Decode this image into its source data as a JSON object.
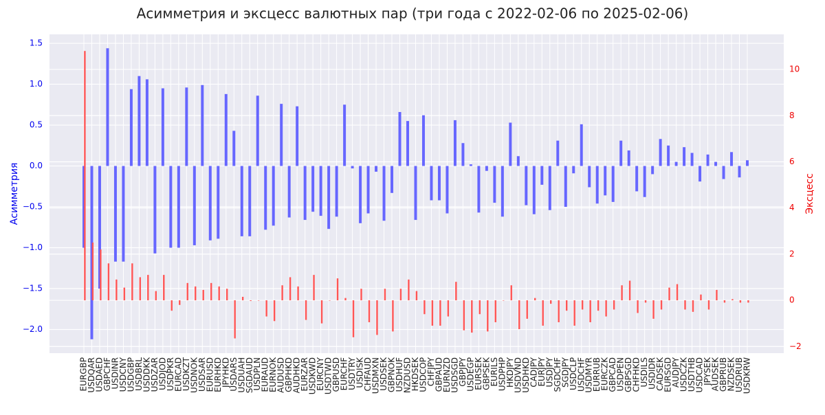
{
  "chart_data": {
    "type": "bar",
    "title": "Асимметрия и эксцесс валютных пар (три года с 2022-02-06 по 2025-02-06)",
    "ylabel": "Асимметрия",
    "y2label": "Эксцесс",
    "categories": [
      "EURGBP",
      "USDQAR",
      "USDAED",
      "GBPCHF",
      "USDINR",
      "USDCNY",
      "USDGBP",
      "USDBRL",
      "USDDKK",
      "USDZAR",
      "USDJOD",
      "USDPKR",
      "EURCAD",
      "USDKZT",
      "USDNOK",
      "USDSAR",
      "EURUSD",
      "EURHKD",
      "JPYHKD",
      "USDARS",
      "USDUAH",
      "SGDAUD",
      "USDPLN",
      "EURAUD",
      "EURNOK",
      "AUDUSD",
      "GBPHKD",
      "AUDHKD",
      "EURZAR",
      "USDKWD",
      "EURCNY",
      "USDTWD",
      "GBPUSD",
      "EURCHF",
      "USDTRY",
      "USDISK",
      "CHFAUD",
      "USDMXN",
      "USDSEK",
      "GBPNOK",
      "USDHUF",
      "NZDUSD",
      "HKDSEK",
      "USDCOP",
      "CHFJPY",
      "GBPAUD",
      "EURNZD",
      "USDSGD",
      "GBPJPY",
      "USDEGP",
      "EURSEK",
      "GBPSEK",
      "EURILS",
      "USDPHP",
      "HKDJPY",
      "USDVND",
      "USDHKD",
      "CADJPY",
      "EURJPY",
      "USDJPY",
      "SGDCHF",
      "SGDJPY",
      "USDCLP",
      "USDCHF",
      "USDMYR",
      "EURRUB",
      "EURCZK",
      "GBPCAD",
      "USDPEN",
      "GBPSGD",
      "CHFHKD",
      "USDILS",
      "USDIDR",
      "CADSEK",
      "EURSGD",
      "AUDJPY",
      "USDCZK",
      "USDTHB",
      "USDCAD",
      "JPYSEK",
      "AUDSEK",
      "GBPRUB",
      "NZDSEK",
      "USDRUB",
      "USDKRW"
    ],
    "series": [
      {
        "name": "Асимметрия",
        "color": "#6666ff",
        "axis": "y",
        "values": [
          -1.0,
          -2.12,
          -1.5,
          1.44,
          -1.17,
          -1.17,
          0.94,
          1.1,
          1.06,
          -1.07,
          0.95,
          -1.0,
          -1.0,
          0.96,
          -0.97,
          0.99,
          -0.91,
          -0.89,
          0.88,
          0.43,
          -0.86,
          -0.86,
          0.86,
          -0.78,
          -0.73,
          0.76,
          -0.63,
          0.73,
          -0.66,
          -0.56,
          -0.61,
          -0.77,
          -0.62,
          0.75,
          -0.03,
          -0.7,
          -0.58,
          -0.07,
          -0.67,
          -0.33,
          0.66,
          0.55,
          -0.66,
          0.62,
          -0.42,
          -0.42,
          -0.58,
          0.56,
          0.28,
          0.02,
          -0.57,
          -0.06,
          -0.45,
          -0.62,
          0.53,
          0.12,
          -0.48,
          -0.59,
          -0.23,
          -0.54,
          0.31,
          -0.5,
          -0.09,
          0.51,
          -0.26,
          -0.46,
          -0.36,
          -0.44,
          0.31,
          0.19,
          -0.31,
          -0.38,
          -0.1,
          0.33,
          0.25,
          0.05,
          0.23,
          0.16,
          -0.19,
          0.14,
          0.05,
          -0.16,
          0.17,
          -0.14,
          0.07
        ]
      },
      {
        "name": "Эксцесс",
        "color": "#ff5555",
        "axis": "y2",
        "values": [
          10.8,
          2.5,
          2.2,
          1.6,
          0.9,
          0.55,
          1.6,
          1.0,
          1.1,
          0.4,
          1.1,
          -0.45,
          -0.2,
          0.75,
          0.6,
          0.45,
          0.75,
          0.6,
          0.5,
          -1.65,
          0.15,
          -0.03,
          0.0,
          -0.7,
          -0.9,
          0.65,
          1.0,
          0.6,
          -0.85,
          1.1,
          -1.0,
          0.0,
          0.95,
          0.1,
          -1.6,
          0.5,
          -0.95,
          -1.5,
          0.5,
          -1.35,
          0.5,
          0.9,
          0.4,
          -0.6,
          -1.1,
          -1.1,
          -0.7,
          0.8,
          -1.3,
          -1.4,
          -0.6,
          -1.35,
          -0.95,
          0.0,
          0.65,
          -1.25,
          -0.8,
          0.1,
          -1.1,
          -0.15,
          -0.95,
          -0.45,
          -1.1,
          -0.4,
          -0.95,
          -0.45,
          -0.7,
          -0.4,
          0.65,
          0.85,
          -0.55,
          -0.1,
          -0.8,
          -0.4,
          0.55,
          0.7,
          -0.4,
          -0.5,
          0.25,
          -0.4,
          0.45,
          -0.1,
          0.05,
          -0.1,
          -0.1
        ]
      }
    ],
    "ylim": [
      -2.29,
      1.61
    ],
    "yticks": [
      {
        "value": -2.0,
        "label": "−2.0"
      },
      {
        "value": -1.5,
        "label": "−1.5"
      },
      {
        "value": -1.0,
        "label": "−1.0"
      },
      {
        "value": -0.5,
        "label": "−0.5"
      },
      {
        "value": 0,
        "label": "0.0"
      },
      0.5,
      {
        "value": 1,
        "label": "1.0"
      },
      1.5
    ],
    "y2lim": [
      -2.29,
      11.52
    ],
    "y2ticks": [
      {
        "value": -2,
        "label": "−2"
      },
      0,
      2,
      4,
      6,
      8,
      10
    ],
    "grid": true
  }
}
